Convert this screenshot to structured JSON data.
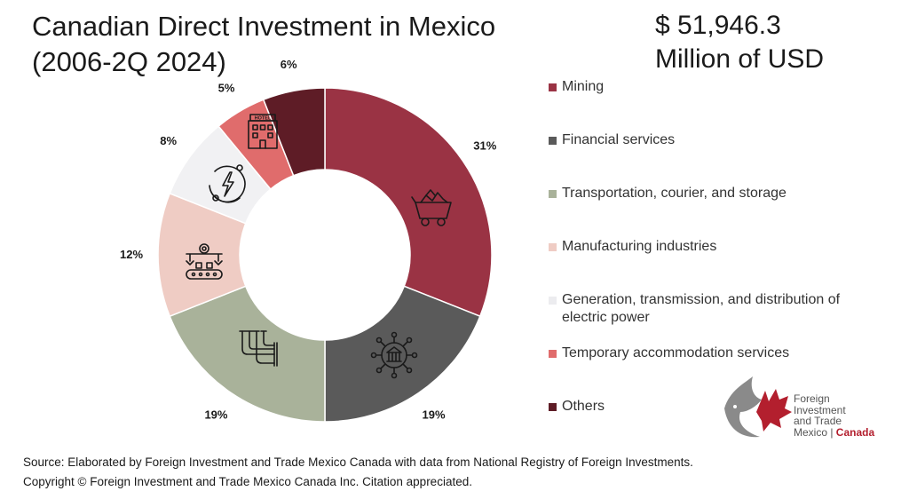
{
  "header": {
    "title_line1": "Canadian Direct Investment in Mexico",
    "title_line2": "(2006-2Q 2024)",
    "total_value": "$ 51,946.3",
    "total_unit": "Million of USD"
  },
  "chart_data": {
    "type": "pie",
    "variant": "donut",
    "title": "Canadian Direct Investment in Mexico (2006-2Q 2024)",
    "total": "$ 51,946.3 Million of USD",
    "legend_position": "right",
    "slices": [
      {
        "label": "Mining",
        "value": 31,
        "display": "31%",
        "color": "#9a3344",
        "icon": "mine-cart-icon"
      },
      {
        "label": "Financial services",
        "value": 19,
        "display": "19%",
        "color": "#5a5a5a",
        "icon": "bank-network-icon"
      },
      {
        "label": "Transportation, courier, and storage",
        "value": 19,
        "display": "19%",
        "color": "#a9b29a",
        "icon": "pipeline-icon"
      },
      {
        "label": "Manufacturing industries",
        "value": 12,
        "display": "12%",
        "color": "#efccc4",
        "icon": "assembly-line-icon"
      },
      {
        "label": "Generation, transmission, and distribution of electric power",
        "value": 8,
        "display": "8%",
        "color": "#f1f1f3",
        "icon": "electric-power-icon"
      },
      {
        "label": "Temporary accommodation services",
        "value": 5,
        "display": "5%",
        "color": "#e06c6c",
        "icon": "hotel-icon"
      },
      {
        "label": "Others",
        "value": 6,
        "display": "6%",
        "color": "#5e1c26",
        "icon": ""
      }
    ]
  },
  "icon_labels": {
    "hotel": "HOTEL"
  },
  "footer": {
    "source": "Source: Elaborated by Foreign Investment and Trade Mexico Canada with data from National Registry of Foreign Investments.",
    "copyright": "Copyright © Foreign Investment and Trade Mexico Canada Inc. Citation appreciated."
  },
  "logo": {
    "line1": "Foreign",
    "line2": "Investment",
    "line3": "and Trade",
    "line4_left": "Mexico | ",
    "line4_right": "Canada"
  }
}
